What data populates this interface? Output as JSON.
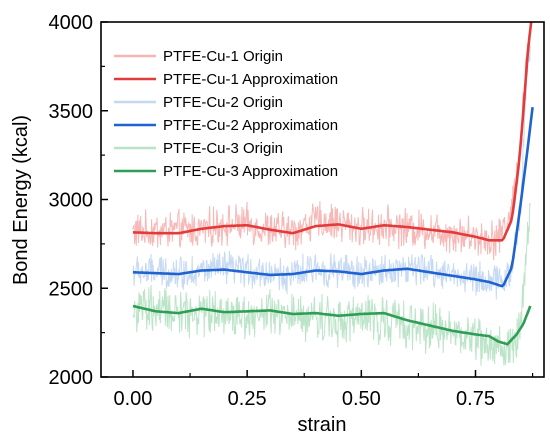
{
  "chart_data": {
    "type": "line",
    "xlabel": "strain",
    "ylabel": "Bond Energy (kcal)",
    "xlim": [
      -0.07,
      0.9
    ],
    "ylim": [
      2000,
      4000
    ],
    "xticks": [
      0.0,
      0.25,
      0.5,
      0.75
    ],
    "xtick_labels": [
      "0.00",
      "0.25",
      "0.50",
      "0.75"
    ],
    "yticks": [
      2000,
      2500,
      3000,
      3500,
      4000
    ],
    "ytick_labels": [
      "2000",
      "2500",
      "3000",
      "3500",
      "4000"
    ],
    "minor_x_step": 0.125,
    "minor_y_step": 250,
    "grid": false,
    "legend_position": "top-left",
    "colors": {
      "PTFE-Cu-1 Origin": "#f6b5b3",
      "PTFE-Cu-1 Approximation": "#e23b3b",
      "PTFE-Cu-2 Origin": "#c4d8f2",
      "PTFE-Cu-2 Approximation": "#1f63d0",
      "PTFE-Cu-3 Origin": "#b8e3c5",
      "PTFE-Cu-3 Approximation": "#2e9e55"
    },
    "series": [
      {
        "name": "PTFE-Cu-1 Origin",
        "kind": "origin",
        "approx_of": "PTFE-Cu-1 Approximation",
        "noise": 85,
        "x": [
          0.0,
          0.1,
          0.15,
          0.2,
          0.25,
          0.3,
          0.35,
          0.4,
          0.45,
          0.5,
          0.55,
          0.6,
          0.65,
          0.7,
          0.75,
          0.8,
          0.83,
          0.85,
          0.86,
          0.87
        ],
        "y": [
          2820,
          2825,
          2830,
          2860,
          2860,
          2830,
          2820,
          2880,
          2870,
          2840,
          2850,
          2840,
          2830,
          2810,
          2790,
          2780,
          2950,
          3350,
          3750,
          4000
        ]
      },
      {
        "name": "PTFE-Cu-1 Approximation",
        "kind": "approx",
        "x": [
          0.0,
          0.05,
          0.1,
          0.15,
          0.2,
          0.25,
          0.3,
          0.35,
          0.4,
          0.45,
          0.5,
          0.55,
          0.6,
          0.65,
          0.7,
          0.75,
          0.78,
          0.81,
          0.83,
          0.845,
          0.855,
          0.865,
          0.872
        ],
        "y": [
          2815,
          2810,
          2810,
          2835,
          2850,
          2855,
          2830,
          2810,
          2850,
          2860,
          2835,
          2855,
          2845,
          2830,
          2815,
          2790,
          2770,
          2770,
          2890,
          3200,
          3500,
          3850,
          4000
        ]
      },
      {
        "name": "PTFE-Cu-2 Origin",
        "kind": "origin",
        "approx_of": "PTFE-Cu-2 Approximation",
        "noise": 75,
        "x": [
          0.0,
          0.1,
          0.15,
          0.2,
          0.25,
          0.3,
          0.35,
          0.4,
          0.45,
          0.5,
          0.55,
          0.6,
          0.65,
          0.7,
          0.75,
          0.8,
          0.83,
          0.85,
          0.86,
          0.87
        ],
        "y": [
          2590,
          2590,
          2600,
          2610,
          2600,
          2580,
          2570,
          2610,
          2600,
          2580,
          2600,
          2610,
          2600,
          2580,
          2560,
          2530,
          2600,
          3000,
          3600,
          3900
        ]
      },
      {
        "name": "PTFE-Cu-2 Approximation",
        "kind": "approx",
        "x": [
          0.0,
          0.05,
          0.1,
          0.15,
          0.2,
          0.25,
          0.3,
          0.35,
          0.4,
          0.45,
          0.5,
          0.55,
          0.6,
          0.65,
          0.7,
          0.75,
          0.78,
          0.81,
          0.83,
          0.845,
          0.86,
          0.875
        ],
        "y": [
          2590,
          2585,
          2580,
          2600,
          2605,
          2590,
          2575,
          2580,
          2600,
          2595,
          2580,
          2600,
          2610,
          2590,
          2570,
          2550,
          2535,
          2510,
          2620,
          2900,
          3200,
          3520
        ]
      },
      {
        "name": "PTFE-Cu-3 Origin",
        "kind": "origin",
        "approx_of": "PTFE-Cu-3 Approximation",
        "noise": 105,
        "x": [
          0.0,
          0.1,
          0.15,
          0.2,
          0.25,
          0.3,
          0.35,
          0.4,
          0.45,
          0.5,
          0.55,
          0.6,
          0.65,
          0.7,
          0.75,
          0.8,
          0.83,
          0.85,
          0.86,
          0.87
        ],
        "y": [
          2380,
          2360,
          2370,
          2360,
          2350,
          2350,
          2330,
          2340,
          2320,
          2330,
          2330,
          2290,
          2280,
          2250,
          2220,
          2170,
          2150,
          2300,
          2700,
          2900
        ]
      },
      {
        "name": "PTFE-Cu-3 Approximation",
        "kind": "approx",
        "x": [
          0.0,
          0.05,
          0.1,
          0.15,
          0.2,
          0.25,
          0.3,
          0.35,
          0.4,
          0.45,
          0.5,
          0.55,
          0.6,
          0.65,
          0.7,
          0.75,
          0.78,
          0.8,
          0.82,
          0.84,
          0.855,
          0.87
        ],
        "y": [
          2400,
          2370,
          2360,
          2385,
          2365,
          2370,
          2375,
          2355,
          2360,
          2345,
          2355,
          2360,
          2320,
          2290,
          2260,
          2240,
          2230,
          2200,
          2185,
          2240,
          2300,
          2400
        ]
      }
    ]
  }
}
